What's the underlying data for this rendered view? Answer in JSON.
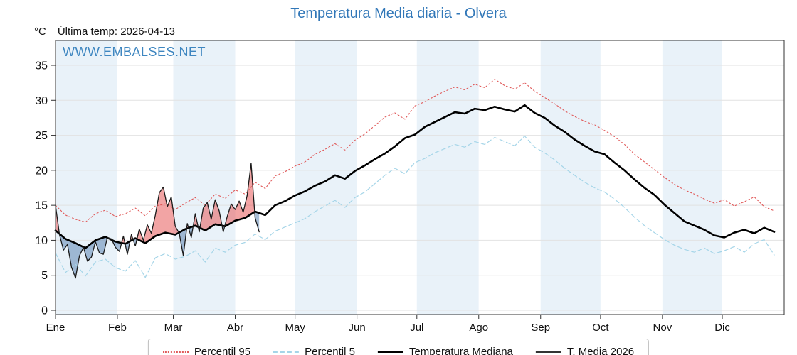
{
  "title": "Temperatura Media diaria - Olvera",
  "header": {
    "unit": "°C",
    "last_temp": "Última temp: 2026-04-13"
  },
  "watermark": "WWW.EMBALSES.NET",
  "legend": {
    "items": [
      {
        "label": "Percentil 95"
      },
      {
        "label": "Percentil 5"
      },
      {
        "label": "Temperatura Mediana"
      },
      {
        "label": "T. Media 2026"
      }
    ]
  },
  "colors": {
    "title": "#3177b8",
    "watermark": "#3e86c0",
    "band": "#e9f2f9",
    "grid": "#e2e2e2",
    "axis": "#333333",
    "p95": "#e05a5a",
    "p5": "#a5d5e8",
    "median": "#000000",
    "t2026": "#1a1a1a",
    "fill_above": "rgba(232,90,90,0.55)",
    "fill_below": "rgba(95,135,180,0.55)"
  },
  "chart_data": {
    "type": "line",
    "x_unit": "day_of_year",
    "total_days": 365,
    "months": [
      "Ene",
      "Feb",
      "Mar",
      "Abr",
      "May",
      "Jun",
      "Jul",
      "Ago",
      "Sep",
      "Oct",
      "Nov",
      "Dic"
    ],
    "month_start_days": [
      0,
      31,
      59,
      90,
      120,
      151,
      181,
      212,
      243,
      273,
      304,
      334
    ],
    "ylim": [
      0,
      35
    ],
    "yticks": [
      0,
      5,
      10,
      15,
      20,
      25,
      30,
      35
    ],
    "ylabel": "°C",
    "grid": true,
    "legend_position": "bottom",
    "series": [
      {
        "name": "Percentil 95",
        "color_key": "p95",
        "dash": "2 3",
        "width": 1.1,
        "x_start": 0,
        "x_step": 5,
        "values": [
          15.0,
          13.6,
          13.0,
          12.6,
          13.8,
          14.3,
          13.4,
          13.8,
          14.6,
          13.5,
          14.9,
          15.2,
          14.4,
          15.3,
          16.1,
          15.0,
          16.6,
          16.0,
          17.2,
          16.6,
          18.3,
          17.4,
          19.2,
          19.8,
          20.6,
          21.2,
          22.3,
          23.0,
          23.8,
          22.9,
          24.3,
          25.2,
          26.4,
          27.6,
          28.2,
          27.3,
          29.2,
          29.8,
          30.6,
          31.3,
          31.9,
          31.5,
          32.3,
          31.8,
          33.0,
          32.1,
          31.6,
          32.5,
          31.3,
          30.4,
          29.5,
          28.5,
          27.7,
          27.0,
          26.5,
          25.7,
          24.8,
          23.7,
          22.3,
          21.2,
          20.1,
          19.0,
          18.0,
          17.2,
          16.6,
          15.9,
          15.3,
          15.8,
          14.9,
          15.5,
          16.2,
          14.8,
          14.2
        ]
      },
      {
        "name": "Percentil 5",
        "color_key": "p5",
        "dash": "6 4",
        "width": 1.2,
        "x_start": 0,
        "x_step": 5,
        "values": [
          8.2,
          5.4,
          6.6,
          4.9,
          6.9,
          7.3,
          6.1,
          5.6,
          7.1,
          4.7,
          7.5,
          8.1,
          7.3,
          7.7,
          8.5,
          6.9,
          8.9,
          8.3,
          9.3,
          9.7,
          10.9,
          10.1,
          11.3,
          11.9,
          12.5,
          13.1,
          14.1,
          14.9,
          15.7,
          14.7,
          16.1,
          16.9,
          18.1,
          19.3,
          20.3,
          19.5,
          21.1,
          21.7,
          22.5,
          23.1,
          23.7,
          23.3,
          24.1,
          23.7,
          24.7,
          24.1,
          23.5,
          24.9,
          23.3,
          22.5,
          21.5,
          20.3,
          19.3,
          18.3,
          17.5,
          16.9,
          15.9,
          14.7,
          13.3,
          12.1,
          11.1,
          10.1,
          9.3,
          8.7,
          8.3,
          8.9,
          8.1,
          8.5,
          9.1,
          8.3,
          9.5,
          10.1,
          7.9
        ]
      },
      {
        "name": "Temperatura Mediana",
        "color_key": "median",
        "dash": "",
        "width": 2.6,
        "x_start": 0,
        "x_step": 5,
        "values": [
          11.4,
          10.2,
          9.6,
          8.9,
          10.0,
          10.5,
          9.8,
          9.5,
          10.3,
          9.6,
          10.6,
          11.1,
          10.8,
          11.6,
          12.1,
          11.4,
          12.3,
          12.0,
          12.8,
          13.2,
          14.1,
          13.6,
          15.0,
          15.6,
          16.4,
          17.0,
          17.8,
          18.4,
          19.3,
          18.8,
          19.9,
          20.7,
          21.6,
          22.4,
          23.4,
          24.6,
          25.1,
          26.2,
          26.9,
          27.6,
          28.3,
          28.1,
          28.8,
          28.6,
          29.1,
          28.7,
          28.4,
          29.3,
          28.2,
          27.5,
          26.4,
          25.5,
          24.4,
          23.5,
          22.7,
          22.3,
          21.1,
          20.0,
          18.7,
          17.5,
          16.5,
          15.1,
          13.9,
          12.7,
          12.1,
          11.5,
          10.7,
          10.4,
          11.1,
          11.5,
          11.0,
          11.8,
          11.2
        ]
      },
      {
        "name": "T. Media 2026",
        "color_key": "t2026",
        "dash": "",
        "width": 1.3,
        "x_start": 0,
        "x_step": 2,
        "values": [
          15.0,
          10.8,
          8.6,
          9.4,
          6.2,
          4.6,
          7.8,
          9.0,
          7.0,
          7.6,
          9.8,
          8.2,
          8.0,
          10.4,
          10.2,
          9.0,
          8.4,
          10.6,
          8.0,
          10.8,
          9.2,
          11.6,
          10.0,
          12.2,
          11.0,
          13.6,
          16.8,
          17.6,
          14.8,
          16.2,
          12.0,
          11.0,
          7.8,
          12.4,
          10.4,
          13.8,
          11.2,
          14.6,
          15.4,
          13.0,
          15.8,
          14.2,
          11.2,
          13.4,
          15.2,
          14.4,
          15.6,
          14.0,
          16.4,
          21.0,
          13.2,
          11.2
        ]
      }
    ]
  }
}
